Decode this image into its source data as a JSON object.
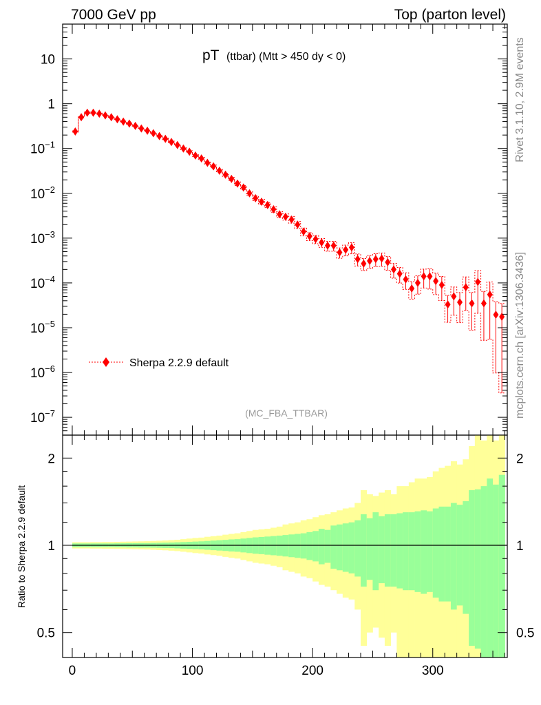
{
  "header": {
    "left": "7000 GeV pp",
    "right": "Top (parton level)"
  },
  "side_labels": {
    "rivet": "Rivet 3.1.10,  2.9M events",
    "mcplots": "mcplots.cern.ch [arXiv:1306.3436]"
  },
  "chart_data": [
    {
      "type": "scatter",
      "title": "pT",
      "title_suffix": "(ttbar) (Mtt > 450 dy < 0)",
      "analysis_label": "(MC_FBA_TTBAR)",
      "yscale": "log",
      "xlim": [
        -8,
        362
      ],
      "ylim": [
        4e-08,
        60
      ],
      "ytick_labels": [
        "10",
        "1",
        "10^-1",
        "10^-2",
        "10^-3",
        "10^-4",
        "10^-5",
        "10^-6",
        "10^-7"
      ],
      "legend": {
        "position": "bottom-left",
        "entries": [
          "Sherpa 2.2.9 default"
        ]
      },
      "color": "#ff0000",
      "series": [
        {
          "name": "Sherpa 2.2.9 default",
          "x": [
            2.5,
            7.5,
            12.5,
            17.5,
            22.5,
            27.5,
            32.5,
            37.5,
            42.5,
            47.5,
            52.5,
            57.5,
            62.5,
            67.5,
            72.5,
            77.5,
            82.5,
            87.5,
            92.5,
            97.5,
            102.5,
            107.5,
            112.5,
            117.5,
            122.5,
            127.5,
            132.5,
            137.5,
            142.5,
            147.5,
            152.5,
            157.5,
            162.5,
            167.5,
            172.5,
            177.5,
            182.5,
            187.5,
            192.5,
            197.5,
            202.5,
            207.5,
            212.5,
            217.5,
            222.5,
            227.5,
            232.5,
            237.5,
            242.5,
            247.5,
            252.5,
            257.5,
            262.5,
            267.5,
            272.5,
            277.5,
            282.5,
            287.5,
            292.5,
            297.5,
            302.5,
            307.5,
            312.5,
            317.5,
            322.5,
            327.5,
            332.5,
            337.5,
            342.5,
            347.5,
            352.5,
            357.5
          ],
          "y": [
            0.24,
            0.5,
            0.63,
            0.63,
            0.6,
            0.55,
            0.5,
            0.45,
            0.4,
            0.36,
            0.32,
            0.28,
            0.25,
            0.22,
            0.19,
            0.165,
            0.14,
            0.12,
            0.1,
            0.085,
            0.07,
            0.06,
            0.048,
            0.04,
            0.032,
            0.026,
            0.021,
            0.0165,
            0.0135,
            0.01,
            0.0078,
            0.0065,
            0.0055,
            0.0044,
            0.0034,
            0.003,
            0.0026,
            0.002,
            0.0014,
            0.0011,
            0.00095,
            0.0008,
            0.00068,
            0.00068,
            0.00048,
            0.00055,
            0.00062,
            0.00034,
            0.00027,
            0.00031,
            0.00034,
            0.00035,
            0.00029,
            0.0002,
            0.00016,
            0.00012,
            7.5e-05,
            0.0001,
            0.00014,
            0.00014,
            0.00011,
            9e-05,
            3.3e-05,
            5e-05,
            3.7e-05,
            8e-05,
            3.5e-05,
            0.000105,
            3.5e-05,
            5.5e-05,
            1.95e-05,
            1.75e-05
          ],
          "yerr_rel": [
            0.03,
            0.03,
            0.03,
            0.03,
            0.03,
            0.03,
            0.03,
            0.03,
            0.03,
            0.03,
            0.03,
            0.03,
            0.03,
            0.03,
            0.04,
            0.04,
            0.04,
            0.04,
            0.05,
            0.05,
            0.05,
            0.06,
            0.06,
            0.07,
            0.07,
            0.08,
            0.08,
            0.09,
            0.1,
            0.11,
            0.12,
            0.13,
            0.13,
            0.14,
            0.15,
            0.16,
            0.17,
            0.18,
            0.2,
            0.2,
            0.21,
            0.22,
            0.25,
            0.25,
            0.26,
            0.27,
            0.28,
            0.3,
            0.3,
            0.32,
            0.32,
            0.33,
            0.34,
            0.36,
            0.38,
            0.4,
            0.42,
            0.44,
            0.45,
            0.48,
            0.5,
            0.55,
            0.6,
            0.62,
            0.65,
            0.7,
            0.75,
            0.8,
            0.85,
            0.9,
            0.95,
            0.98
          ]
        }
      ]
    },
    {
      "type": "area",
      "ylabel": "Ratio to Sherpa 2.2.9 default",
      "yscale": "log",
      "xlim": [
        -8,
        362
      ],
      "ylim": [
        0.41,
        2.4
      ],
      "xtick_labels": [
        "0",
        "100",
        "200",
        "300"
      ],
      "ytick_labels": [
        "0.5",
        "1",
        "2"
      ],
      "colors": {
        "inner_band": "#99ff99",
        "outer_band": "#ffff99",
        "reference": "#000000"
      },
      "x_edges": [
        0,
        5,
        10,
        15,
        20,
        25,
        30,
        35,
        40,
        45,
        50,
        55,
        60,
        65,
        70,
        75,
        80,
        85,
        90,
        95,
        100,
        105,
        110,
        115,
        120,
        125,
        130,
        135,
        140,
        145,
        150,
        155,
        160,
        165,
        170,
        175,
        180,
        185,
        190,
        195,
        200,
        205,
        210,
        215,
        220,
        225,
        230,
        235,
        240,
        245,
        250,
        255,
        260,
        265,
        270,
        275,
        280,
        285,
        290,
        295,
        300,
        305,
        310,
        315,
        320,
        325,
        330,
        335,
        340,
        345,
        350,
        355,
        360
      ],
      "inner_band_halfwidth": [
        0.015,
        0.015,
        0.015,
        0.015,
        0.015,
        0.015,
        0.015,
        0.016,
        0.016,
        0.017,
        0.017,
        0.018,
        0.018,
        0.019,
        0.02,
        0.021,
        0.022,
        0.024,
        0.026,
        0.028,
        0.03,
        0.032,
        0.035,
        0.038,
        0.041,
        0.044,
        0.048,
        0.05,
        0.055,
        0.06,
        0.065,
        0.068,
        0.072,
        0.076,
        0.08,
        0.085,
        0.09,
        0.095,
        0.1,
        0.11,
        0.12,
        0.14,
        0.13,
        0.17,
        0.18,
        0.19,
        0.2,
        0.22,
        0.28,
        0.24,
        0.3,
        0.26,
        0.28,
        0.28,
        0.29,
        0.3,
        0.3,
        0.31,
        0.32,
        0.31,
        0.34,
        0.36,
        0.36,
        0.4,
        0.38,
        0.42,
        0.55,
        0.56,
        0.6,
        0.7,
        0.62,
        0.75
      ],
      "outer_band_halfwidth": [
        0.025,
        0.025,
        0.025,
        0.026,
        0.026,
        0.027,
        0.027,
        0.028,
        0.029,
        0.03,
        0.031,
        0.032,
        0.033,
        0.035,
        0.037,
        0.039,
        0.042,
        0.045,
        0.05,
        0.055,
        0.06,
        0.063,
        0.07,
        0.075,
        0.08,
        0.088,
        0.095,
        0.1,
        0.11,
        0.12,
        0.13,
        0.135,
        0.14,
        0.15,
        0.16,
        0.18,
        0.19,
        0.2,
        0.22,
        0.23,
        0.25,
        0.27,
        0.28,
        0.3,
        0.32,
        0.34,
        0.35,
        0.4,
        0.55,
        0.5,
        0.48,
        0.52,
        0.55,
        0.5,
        0.6,
        0.6,
        0.65,
        0.7,
        0.7,
        0.72,
        0.8,
        0.85,
        0.88,
        0.95,
        0.9,
        0.98,
        1.2,
        1.4,
        1.3,
        1.4,
        1.3,
        1.5
      ]
    }
  ]
}
